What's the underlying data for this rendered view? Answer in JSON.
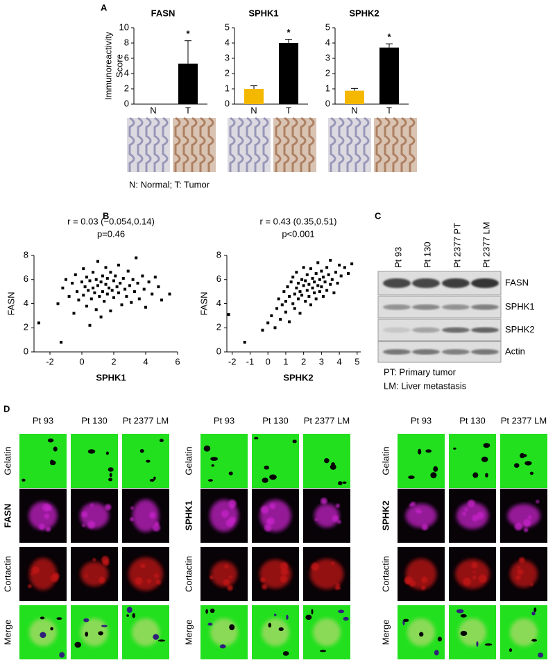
{
  "panel_labels": [
    "A",
    "B",
    "C",
    "D"
  ],
  "chart_data": [
    {
      "type": "bar",
      "title": "FASN",
      "y_label": [
        "Immunoreactivity",
        "Score"
      ],
      "categories": [
        "N",
        "T"
      ],
      "values": [
        0,
        5.3
      ],
      "errors": [
        0,
        3.0
      ],
      "colors": [
        "#f5b800",
        "#000000"
      ],
      "ylim": [
        0,
        10
      ],
      "yticks": [
        0,
        2,
        4,
        6,
        8,
        10
      ],
      "annotation": "*"
    },
    {
      "type": "bar",
      "title": "SPHK1",
      "categories": [
        "N",
        "T"
      ],
      "values": [
        1.0,
        4.0
      ],
      "errors": [
        0.2,
        0.25
      ],
      "colors": [
        "#f5b800",
        "#000000"
      ],
      "ylim": [
        0,
        5
      ],
      "yticks": [
        0,
        1,
        2,
        3,
        4,
        5
      ],
      "annotation": "*"
    },
    {
      "type": "bar",
      "title": "SPHK2",
      "categories": [
        "N",
        "T"
      ],
      "values": [
        0.88,
        3.7
      ],
      "errors": [
        0.15,
        0.25
      ],
      "colors": [
        "#f5b800",
        "#000000"
      ],
      "ylim": [
        0,
        5
      ],
      "yticks": [
        0,
        1,
        2,
        3,
        4,
        5
      ],
      "annotation": "*"
    },
    {
      "type": "scatter",
      "title": "r = 0.03 (−0.054,0.14)",
      "subtitle": "p=0.46",
      "x_label": "SPHK1",
      "y_label": "FASN",
      "color": "#000000",
      "x": [
        -2.7,
        -1.3,
        -1.5,
        -1.2,
        -1.0,
        -0.8,
        -0.6,
        -0.5,
        -0.4,
        -0.3,
        -0.2,
        0,
        0.1,
        0.1,
        0.2,
        0.3,
        0.3,
        0.4,
        0.5,
        0.5,
        0.6,
        0.7,
        0.7,
        0.8,
        0.9,
        0.9,
        1.0,
        1.0,
        1.1,
        1.2,
        1.2,
        1.3,
        1.3,
        1.4,
        1.5,
        1.5,
        1.6,
        1.6,
        1.7,
        1.8,
        1.8,
        1.9,
        2.0,
        2.0,
        2.1,
        2.2,
        2.3,
        2.3,
        2.4,
        2.5,
        2.6,
        2.7,
        2.8,
        2.9,
        3.0,
        3.1,
        3.2,
        3.3,
        3.4,
        3.5,
        3.6,
        3.8,
        3.9,
        4.0,
        4.2,
        4.4,
        4.6,
        4.8,
        5.0,
        5.5
      ],
      "y": [
        2.4,
        0.8,
        4.0,
        5.3,
        6.0,
        4.6,
        5.7,
        3.2,
        6.4,
        5.0,
        4.3,
        5.8,
        6.9,
        4.7,
        5.4,
        3.8,
        6.2,
        5.1,
        2.2,
        5.9,
        4.4,
        6.6,
        5.3,
        4.9,
        3.5,
        6.0,
        5.5,
        7.5,
        4.6,
        5.8,
        2.9,
        6.3,
        5.0,
        4.2,
        5.6,
        7.0,
        6.1,
        4.8,
        5.3,
        3.4,
        6.6,
        5.1,
        5.9,
        4.5,
        6.3,
        5.4,
        7.2,
        4.9,
        5.7,
        3.9,
        6.1,
        5.2,
        4.6,
        6.7,
        5.5,
        4.1,
        6.0,
        5.0,
        7.8,
        5.7,
        4.4,
        6.3,
        5.2,
        3.7,
        5.8,
        4.8,
        6.2,
        5.4,
        4.3,
        4.8
      ],
      "xlim": [
        -3,
        6
      ],
      "ylim": [
        0,
        8
      ],
      "xticks": [
        -2,
        0,
        2,
        4,
        6
      ],
      "yticks": [
        0,
        2,
        4,
        6,
        8
      ]
    },
    {
      "type": "scatter",
      "title": "r = 0.43 (0.35,0.51)",
      "subtitle": "p<0.001",
      "x_label": "SPHK2",
      "y_label": "FASN",
      "color": "#000000",
      "x": [
        -2.2,
        -1.3,
        -0.3,
        0,
        0.2,
        0.4,
        0.5,
        0.6,
        0.7,
        0.8,
        0.9,
        1.0,
        1.0,
        1.1,
        1.2,
        1.2,
        1.3,
        1.4,
        1.4,
        1.5,
        1.5,
        1.6,
        1.6,
        1.7,
        1.7,
        1.8,
        1.8,
        1.9,
        1.9,
        2.0,
        2.0,
        2.1,
        2.1,
        2.2,
        2.2,
        2.3,
        2.3,
        2.4,
        2.4,
        2.5,
        2.5,
        2.6,
        2.6,
        2.7,
        2.7,
        2.8,
        2.8,
        2.9,
        2.9,
        3.0,
        3.0,
        3.1,
        3.1,
        3.2,
        3.3,
        3.3,
        3.4,
        3.5,
        3.5,
        3.6,
        3.7,
        3.8,
        3.9,
        4.0,
        4.1,
        4.3,
        4.5,
        4.7
      ],
      "y": [
        3.1,
        0.8,
        1.8,
        2.4,
        3.0,
        2.0,
        3.6,
        4.4,
        2.7,
        3.9,
        5.0,
        4.2,
        3.3,
        5.4,
        4.6,
        2.5,
        5.8,
        4.0,
        6.2,
        4.8,
        3.6,
        5.3,
        6.6,
        4.4,
        5.7,
        3.2,
        5.0,
        6.0,
        4.7,
        5.5,
        7.0,
        4.2,
        5.9,
        5.1,
        6.4,
        4.6,
        5.6,
        6.9,
        3.9,
        5.3,
        6.1,
        4.9,
        5.8,
        6.5,
        4.4,
        5.5,
        7.4,
        6.0,
        5.0,
        6.7,
        5.4,
        4.6,
        6.2,
        5.8,
        7.0,
        5.1,
        6.4,
        5.6,
        7.6,
        6.0,
        4.9,
        6.6,
        5.7,
        7.2,
        6.3,
        7.0,
        6.5,
        7.3
      ],
      "xlim": [
        -2.3,
        5.2
      ],
      "ylim": [
        0,
        8
      ],
      "xticks": [
        -2,
        -1,
        0,
        1,
        2,
        3,
        4,
        5
      ],
      "yticks": [
        0,
        2,
        4,
        6,
        8
      ]
    }
  ],
  "panel_a": {
    "note": "N: Normal; T: Tumor"
  },
  "panel_c": {
    "lanes": [
      "Pt 93",
      "Pt 130",
      "Pt 2377 PT",
      "Pt 2377 LM"
    ],
    "proteins": [
      "FASN",
      "SPHK1",
      "SPHK2",
      "Actin"
    ],
    "notes": [
      "PT: Primary tumor",
      "LM: Liver metastasis"
    ]
  },
  "panel_d": {
    "groups": [
      {
        "columns": [
          "Pt 93",
          "Pt 130",
          "Pt 2377 LM"
        ],
        "rows": [
          "Gelatin",
          "FASN",
          "Cortactin",
          "Merge"
        ]
      },
      {
        "columns": [
          "Pt 93",
          "Pt 130",
          "Pt 2377 LM"
        ],
        "rows": [
          "Gelatin",
          "SPHK1",
          "Cortactin",
          "Merge"
        ]
      },
      {
        "columns": [
          "Pt 93",
          "Pt 130",
          "Pt 2377 LM"
        ],
        "rows": [
          "Gelatin",
          "SPHK2",
          "Cortactin",
          "Merge"
        ]
      }
    ]
  }
}
